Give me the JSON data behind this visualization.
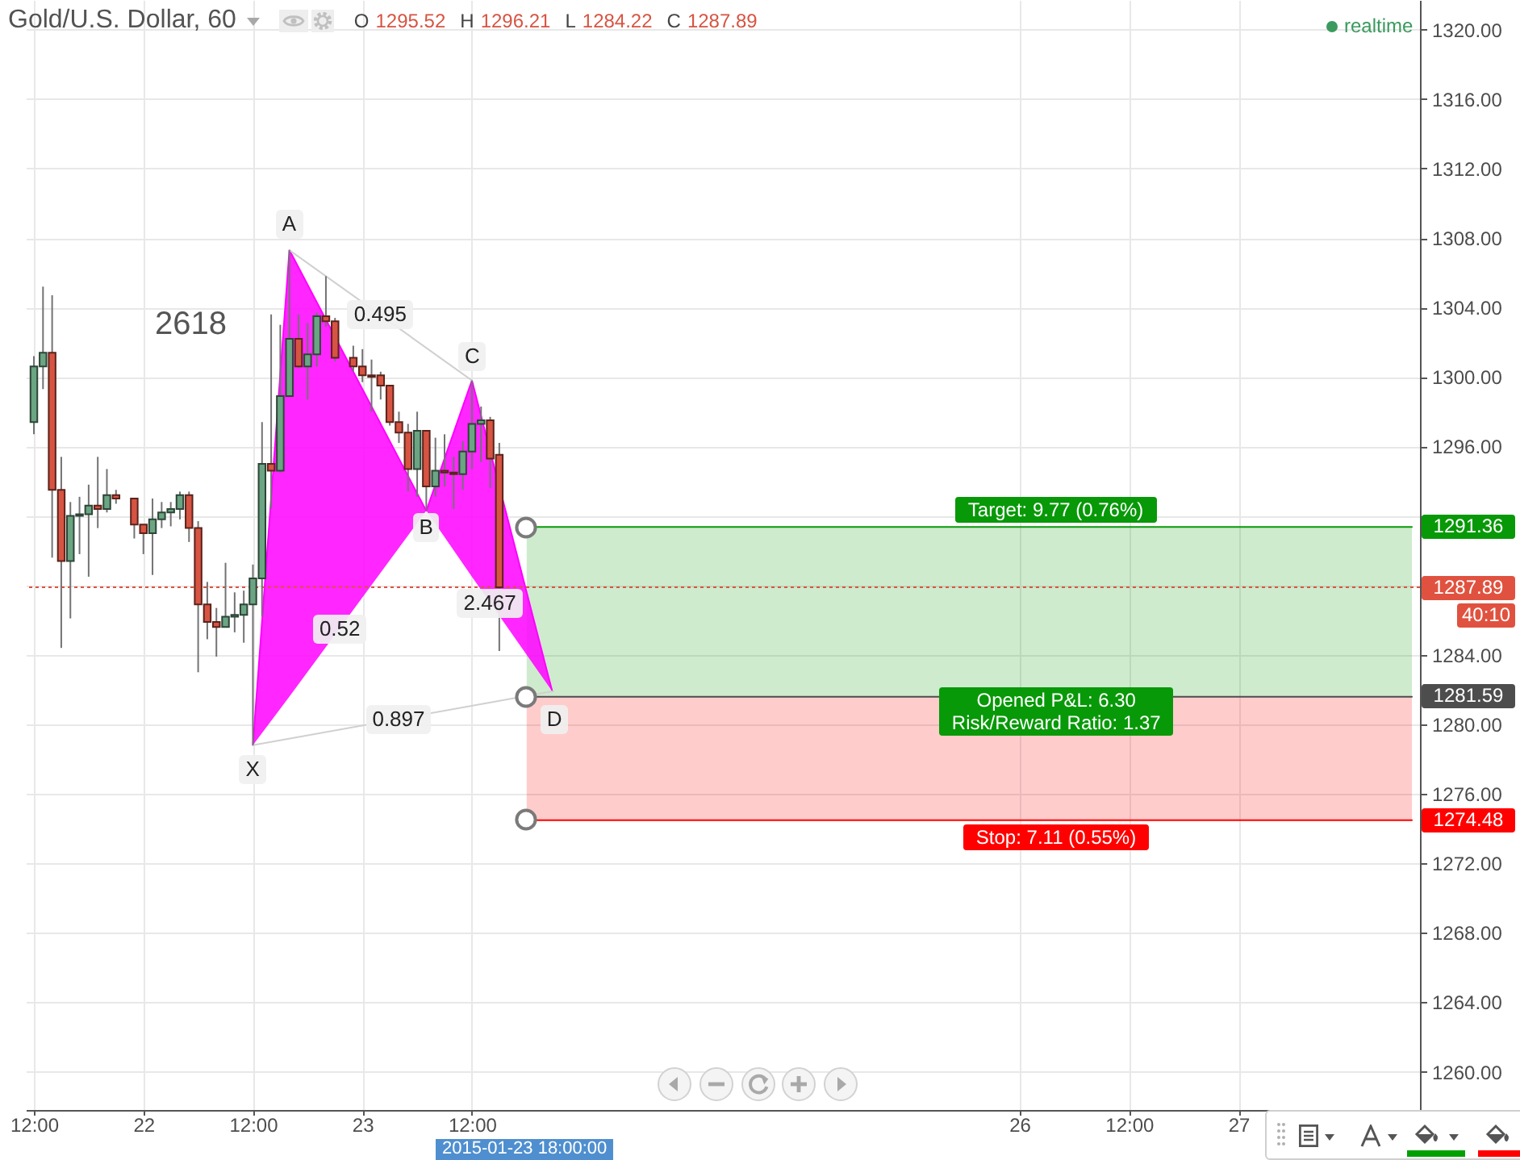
{
  "chart_data": {
    "type": "candlestick",
    "title": "Gold/U.S. Dollar, 60",
    "subtitle": "O 1295.52 H 1296.21 L 1284.22 C 1287.89",
    "x": [
      "2015-01-21T12:00",
      "2015-01-21T13:00",
      "2015-01-21T14:00",
      "2015-01-21T15:00",
      "2015-01-21T16:00",
      "2015-01-21T17:00",
      "2015-01-21T18:00",
      "2015-01-21T19:00",
      "2015-01-21T20:00",
      "2015-01-21T21:00",
      "2015-01-21T23:00",
      "2015-01-22T00:00",
      "2015-01-22T01:00",
      "2015-01-22T02:00",
      "2015-01-22T03:00",
      "2015-01-22T04:00",
      "2015-01-22T05:00",
      "2015-01-22T06:00",
      "2015-01-22T07:00",
      "2015-01-22T08:00",
      "2015-01-22T09:00",
      "2015-01-22T10:00",
      "2015-01-22T11:00",
      "2015-01-22T12:00",
      "2015-01-22T13:00",
      "2015-01-22T14:00",
      "2015-01-22T15:00",
      "2015-01-22T16:00",
      "2015-01-22T17:00",
      "2015-01-22T18:00",
      "2015-01-22T19:00",
      "2015-01-22T20:00",
      "2015-01-22T21:00",
      "2015-01-22T23:00",
      "2015-01-23T00:00",
      "2015-01-23T01:00",
      "2015-01-23T02:00",
      "2015-01-23T03:00",
      "2015-01-23T04:00",
      "2015-01-23T05:00",
      "2015-01-23T06:00",
      "2015-01-23T07:00",
      "2015-01-23T08:00",
      "2015-01-23T09:00",
      "2015-01-23T10:00",
      "2015-01-23T11:00",
      "2015-01-23T12:00",
      "2015-01-23T13:00",
      "2015-01-23T14:00",
      "2015-01-23T15:00"
    ],
    "ohlc": [
      [
        1297.4,
        1301.2,
        1296.7,
        1300.6
      ],
      [
        1300.6,
        1305.2,
        1299.3,
        1301.4
      ],
      [
        1301.4,
        1304.7,
        1289.6,
        1293.5
      ],
      [
        1293.5,
        1295.4,
        1284.4,
        1289.4
      ],
      [
        1289.4,
        1292.8,
        1286.1,
        1292.0
      ],
      [
        1292.0,
        1293.1,
        1289.8,
        1292.1
      ],
      [
        1292.1,
        1293.8,
        1288.5,
        1292.6
      ],
      [
        1292.6,
        1295.4,
        1291.3,
        1292.4
      ],
      [
        1292.4,
        1294.7,
        1292.2,
        1293.2
      ],
      [
        1293.2,
        1293.5,
        1292.7,
        1293.0
      ],
      [
        1293.0,
        1293.0,
        1290.7,
        1291.5
      ],
      [
        1291.5,
        1291.5,
        1289.8,
        1291.0
      ],
      [
        1291.0,
        1293.0,
        1288.6,
        1291.8
      ],
      [
        1291.8,
        1292.8,
        1291.3,
        1292.2
      ],
      [
        1292.2,
        1292.8,
        1291.4,
        1292.4
      ],
      [
        1292.4,
        1293.4,
        1291.8,
        1293.2
      ],
      [
        1293.2,
        1293.4,
        1290.5,
        1291.3
      ],
      [
        1291.3,
        1291.7,
        1283.0,
        1286.9
      ],
      [
        1286.9,
        1288.2,
        1284.9,
        1285.9
      ],
      [
        1285.9,
        1286.7,
        1283.9,
        1285.6
      ],
      [
        1285.6,
        1289.3,
        1285.6,
        1286.2
      ],
      [
        1286.2,
        1287.6,
        1285.3,
        1286.3
      ],
      [
        1286.3,
        1287.7,
        1284.7,
        1286.9
      ],
      [
        1286.9,
        1289.2,
        1278.8,
        1288.4
      ],
      [
        1288.4,
        1297.4,
        1286.2,
        1295.0
      ],
      [
        1295.0,
        1303.6,
        1292.4,
        1294.6
      ],
      [
        1294.6,
        1303.0,
        1294.5,
        1298.9
      ],
      [
        1298.9,
        1307.3,
        1298.9,
        1302.2
      ],
      [
        1302.2,
        1303.6,
        1300.5,
        1300.6
      ],
      [
        1300.6,
        1303.1,
        1298.7,
        1301.3
      ],
      [
        1301.3,
        1303.7,
        1300.6,
        1303.5
      ],
      [
        1303.5,
        1305.8,
        1302.9,
        1303.2
      ],
      [
        1303.2,
        1303.4,
        1300.9,
        1301.1
      ],
      [
        1301.1,
        1301.8,
        1300.3,
        1300.6
      ],
      [
        1300.6,
        1301.6,
        1299.7,
        1300.1
      ],
      [
        1300.1,
        1301.0,
        1298.0,
        1300.0
      ],
      [
        1300.1,
        1300.3,
        1298.7,
        1299.5
      ],
      [
        1299.5,
        1299.5,
        1297.2,
        1297.4
      ],
      [
        1297.4,
        1298.0,
        1296.2,
        1296.8
      ],
      [
        1296.8,
        1297.3,
        1293.4,
        1294.7
      ],
      [
        1294.7,
        1298.0,
        1293.1,
        1296.9
      ],
      [
        1296.9,
        1296.9,
        1292.3,
        1293.7
      ],
      [
        1293.7,
        1296.5,
        1293.1,
        1294.6
      ],
      [
        1294.6,
        1296.7,
        1293.7,
        1294.5
      ],
      [
        1294.5,
        1295.4,
        1292.4,
        1294.4
      ],
      [
        1294.4,
        1296.3,
        1293.5,
        1295.7
      ],
      [
        1295.7,
        1299.8,
        1294.7,
        1297.3
      ],
      [
        1297.3,
        1298.3,
        1295.1,
        1297.5
      ],
      [
        1297.5,
        1297.7,
        1293.6,
        1295.3
      ],
      [
        1295.52,
        1296.21,
        1284.22,
        1287.89
      ]
    ],
    "colors": [
      "#6ba583",
      "#6ba583",
      "#d75442",
      "#d75442",
      "#6ba583",
      "#6ba583",
      "#6ba583",
      "#d75442",
      "#6ba583",
      "#d75442",
      "#d75442",
      "#d75442",
      "#6ba583",
      "#6ba583",
      "#6ba583",
      "#6ba583",
      "#d75442",
      "#d75442",
      "#d75442",
      "#d75442",
      "#6ba583",
      "#6ba583",
      "#6ba583",
      "#6ba583",
      "#6ba583",
      "#d75442",
      "#6ba583",
      "#6ba583",
      "#d75442",
      "#6ba583",
      "#6ba583",
      "#d75442",
      "#d75442",
      "#d75442",
      "#d75442",
      "#d75442",
      "#d75442",
      "#d75442",
      "#d75442",
      "#d75442",
      "#6ba583",
      "#d75442",
      "#6ba583",
      "#d75442",
      "#d75442",
      "#6ba583",
      "#6ba583",
      "#6ba583",
      "#d75442",
      "#d75442"
    ],
    "series": [
      {
        "type": "line",
        "color": "#089908",
        "x": [
          "2015-01-23T18:00",
          "2015-01-27T19:00"
        ],
        "values": [
          1291.36,
          1291.36
        ],
        "lower": [
          1281.59,
          1281.59
        ],
        "upper": [
          1291.36,
          1291.36
        ],
        "value_labels": [
          null,
          "1291.36"
        ]
      },
      {
        "type": "line",
        "color": "#ff0000",
        "x": [
          "2015-01-23T18:00",
          "2015-01-27T19:00"
        ],
        "values": [
          1274.48,
          1274.48
        ],
        "lower": [
          1274.48,
          1274.48
        ],
        "upper": [
          1281.59,
          1281.59
        ],
        "value_labels": [
          null,
          "1274.48"
        ]
      },
      {
        "type": "line",
        "color": "#4d4d4d",
        "x": [
          "2015-01-23T18:00",
          "2015-01-27T19:00"
        ],
        "values": [
          1281.59,
          1281.59
        ],
        "value_labels": [
          null,
          "1281.59"
        ]
      },
      {
        "type": "line",
        "color": "#ff00ff",
        "x": [
          "2015-01-22T12:00",
          "2015-01-22T16:00",
          "2015-01-23T07:00",
          "2015-01-23T12:00",
          "2015-01-23T20:48"
        ],
        "values": [
          1278.8,
          1307.3,
          1292.3,
          1299.8,
          1281.9
        ],
        "lower": [
          1278.8,
          1281.6,
          1292.3,
          1288.5,
          1281.9
        ],
        "upper": [
          1278.8,
          1307.3,
          1292.3,
          1299.8,
          1281.9
        ]
      },
      {
        "type": "line",
        "color": "#d0d0d0",
        "x": [
          "2015-01-22T16:00",
          "2015-01-23T12:00"
        ],
        "values": [
          1307.3,
          1299.8
        ]
      },
      {
        "type": "line",
        "color": "#d0d0d0",
        "x": [
          "2015-01-22T12:00",
          "2015-01-23T20:48"
        ],
        "values": [
          1278.8,
          1281.9
        ]
      }
    ],
    "ref_lines": [
      {
        "axis": "y",
        "value": 1287.89,
        "label": "1287.89\n40:10",
        "color": "#e0523f",
        "line_style": "dotted"
      }
    ],
    "annotations": [
      "2618",
      "realtime",
      "2015-01-23 18:00:00",
      {
        "text": "A",
        "x": "2015-01-22T16:00",
        "y": 1308.8
      },
      {
        "text": "X",
        "x": "2015-01-22T12:00",
        "y": 1277.4
      },
      {
        "text": "B",
        "x": "2015-01-23T07:00",
        "y": 1291.3
      },
      {
        "text": "C",
        "x": "2015-01-23T12:00",
        "y": 1301.2
      },
      {
        "text": "D",
        "x": "2015-01-23T21:00",
        "y": 1280.3
      },
      {
        "text": "0.495",
        "x": "2015-01-23T02:00",
        "y": 1303.6
      },
      {
        "text": "0.52",
        "x": "2015-01-22T21:30",
        "y": 1285.5
      },
      {
        "text": "2.467",
        "x": "2015-01-23T14:00",
        "y": 1287.0
      },
      {
        "text": "0.897",
        "x": "2015-01-23T04:00",
        "y": 1280.3
      },
      {
        "text": "Target: 9.77 (0.76%)",
        "x": "2015-01-26T04:00",
        "y": 1291.36
      },
      {
        "text": "Opened P&L: 6.30\nRisk/Reward Ratio: 1.37",
        "x": "2015-01-26T04:00",
        "y": 1281.59
      },
      {
        "text": "Stop: 7.11 (0.55%)",
        "x": "2015-01-26T04:00",
        "y": 1274.48
      }
    ],
    "xlim": [
      "2015-01-21T12:00",
      "2015-01-27T19:00"
    ],
    "xticks": [
      {
        "value": "2015-01-21T12:00",
        "label": "12:00"
      },
      {
        "value": "2015-01-22T00:00",
        "label": "22"
      },
      {
        "value": "2015-01-22T12:00",
        "label": "12:00"
      },
      {
        "value": "2015-01-23T00:00",
        "label": "23"
      },
      {
        "value": "2015-01-23T12:00",
        "label": "12:00"
      },
      {
        "value": "2015-01-26T00:00",
        "label": "26"
      },
      {
        "value": "2015-01-26T12:00",
        "label": "12:00"
      },
      {
        "value": "2015-01-27T00:00",
        "label": "27"
      }
    ],
    "ylim": [
      1257.8,
      1321.7
    ],
    "yticks": [
      {
        "value": 1260,
        "label": "1260.00"
      },
      {
        "value": 1264,
        "label": "1264.00"
      },
      {
        "value": 1268,
        "label": "1268.00"
      },
      {
        "value": 1272,
        "label": "1272.00"
      },
      {
        "value": 1276,
        "label": "1276.00"
      },
      {
        "value": 1280,
        "label": "1280.00"
      },
      {
        "value": 1284,
        "label": "1284.00"
      },
      {
        "value": 1288,
        "label": null
      },
      {
        "value": 1292,
        "label": null
      },
      {
        "value": 1296,
        "label": "1296.00"
      },
      {
        "value": 1300,
        "label": "1300.00"
      },
      {
        "value": 1304,
        "label": "1304.00"
      },
      {
        "value": 1308,
        "label": "1308.00"
      },
      {
        "value": 1312,
        "label": "1312.00"
      },
      {
        "value": 1316,
        "label": "1316.00"
      },
      {
        "value": 1320,
        "label": "1320.00"
      }
    ],
    "grid": true
  }
}
